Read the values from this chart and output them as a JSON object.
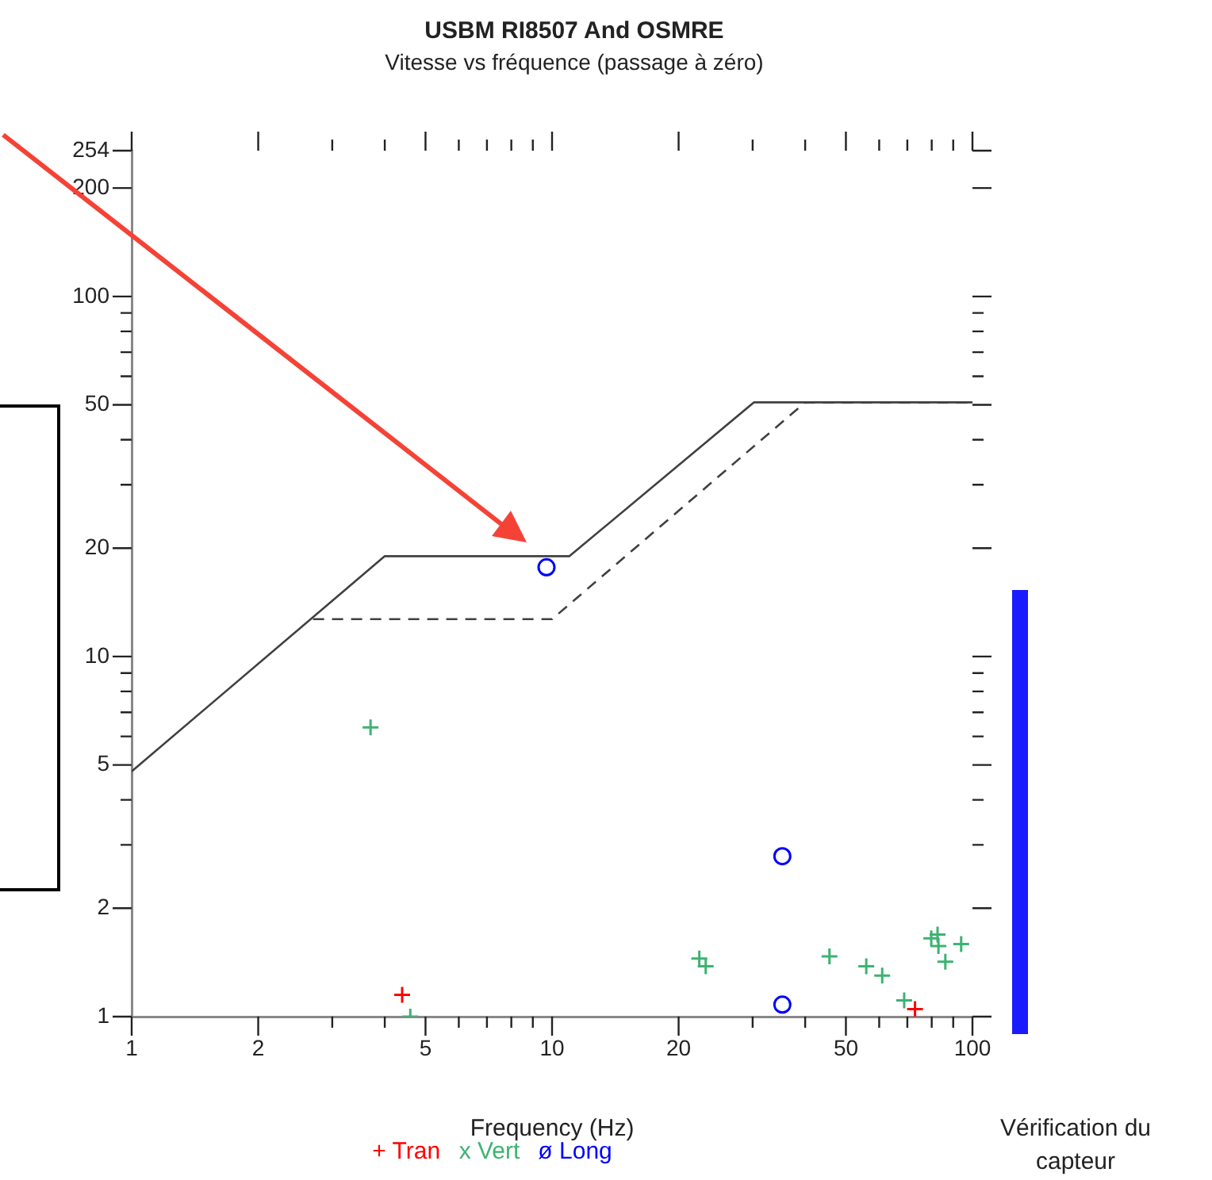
{
  "chart_data": {
    "type": "scatter",
    "title": "USBM RI8507 And OSMRE",
    "subtitle": "Vitesse vs fréquence (passage à zéro)",
    "xlabel": "Frequency (Hz)",
    "annotations": [
      "Vérification du capteur"
    ],
    "log": "xy",
    "xlim": [
      1,
      100
    ],
    "ylim": [
      1,
      254
    ],
    "xticks": [
      1,
      2,
      {
        "value": 3,
        "label": null
      },
      {
        "value": 4,
        "label": null
      },
      5,
      {
        "value": 6,
        "label": null
      },
      {
        "value": 7,
        "label": null
      },
      {
        "value": 8,
        "label": null
      },
      {
        "value": 9,
        "label": null
      },
      10,
      20,
      {
        "value": 30,
        "label": null
      },
      {
        "value": 40,
        "label": null
      },
      50,
      {
        "value": 60,
        "label": null
      },
      {
        "value": 70,
        "label": null
      },
      {
        "value": 80,
        "label": null
      },
      {
        "value": 90,
        "label": null
      },
      100
    ],
    "yticks": [
      1,
      2,
      {
        "value": 3,
        "label": null
      },
      {
        "value": 4,
        "label": null
      },
      5,
      {
        "value": 6,
        "label": null
      },
      {
        "value": 7,
        "label": null
      },
      {
        "value": 8,
        "label": null
      },
      {
        "value": 9,
        "label": null
      },
      10,
      20,
      {
        "value": 30,
        "label": null
      },
      {
        "value": 40,
        "label": null
      },
      50,
      {
        "value": 60,
        "label": null
      },
      {
        "value": 70,
        "label": null
      },
      {
        "value": 80,
        "label": null
      },
      {
        "value": 90,
        "label": null
      },
      100,
      200,
      254
    ],
    "grid": false,
    "legend": "bottom",
    "series": [
      {
        "type": "line",
        "color": "#404040",
        "line_style": "solid",
        "marker": "none",
        "x": [
          1,
          4,
          11,
          30.2,
          100
        ],
        "values": [
          4.8,
          19,
          19,
          50.8,
          50.8
        ]
      },
      {
        "type": "line",
        "color": "#404040",
        "line_style": "dashed",
        "marker": "none",
        "x": [
          2.7,
          10,
          40,
          100
        ],
        "values": [
          12.7,
          12.7,
          50.8,
          50.8
        ]
      },
      {
        "name": "+ Tran",
        "color": "#ff0000",
        "marker": "cross",
        "x": [
          4.4,
          73
        ],
        "values": [
          1.15,
          1.05
        ]
      },
      {
        "name": "x Vert",
        "color": "#3cb371",
        "marker": "cross",
        "x": [
          3.7,
          4.6,
          22.4,
          23.2,
          45.7,
          55.9,
          61,
          68.8,
          79.8,
          82.6,
          83,
          86.2,
          94
        ],
        "values": [
          6.36,
          1.0,
          1.45,
          1.38,
          1.47,
          1.38,
          1.3,
          1.11,
          1.65,
          1.69,
          1.57,
          1.42,
          1.59
        ]
      },
      {
        "name": "ø Long",
        "color": "#0000ff",
        "marker": "circle",
        "x": [
          9.7,
          35.3,
          35.3
        ],
        "values": [
          17.7,
          2.79,
          1.08
        ]
      }
    ]
  }
}
